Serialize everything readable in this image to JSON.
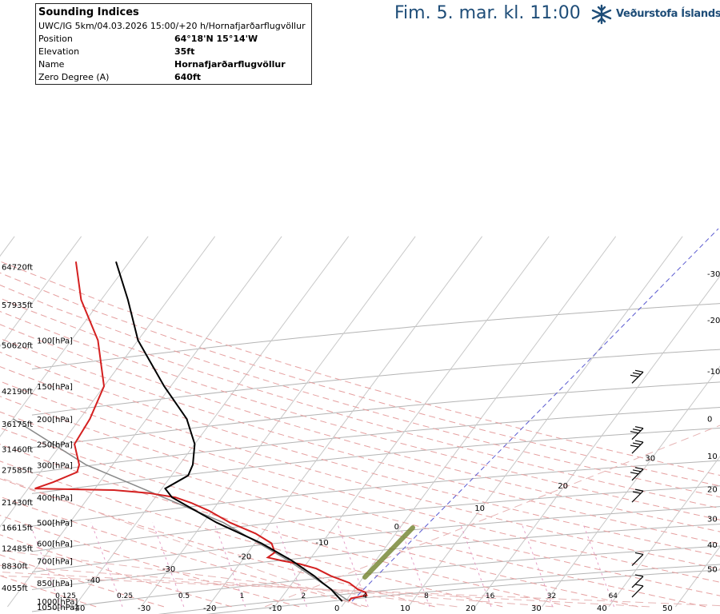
{
  "header": {
    "time_label": "Fim. 5. mar. kl. 11:00",
    "logo_text": "Veðurstofa Íslands",
    "brand_color": "#1e4d78"
  },
  "info": {
    "title": "Sounding Indices",
    "subtitle": "UWC/IG 5km/04.03.2026 15:00/+20 h/Hornafjarðarflugvöllur",
    "rows": [
      {
        "label": "Position",
        "value": "64°18'N 15°14'W"
      },
      {
        "label": "Elevation",
        "value": "35ft"
      },
      {
        "label": "Name",
        "value": "Hornafjarðarflugvöllur"
      },
      {
        "label": "Zero Degree (A)",
        "value": "640ft"
      }
    ]
  },
  "chart_data": {
    "type": "line",
    "pressure_levels": [
      {
        "p": 100,
        "label": "100[hPa]",
        "alt": "50620ft"
      },
      {
        "p": 150,
        "label": "150[hPa]",
        "alt": "42190ft"
      },
      {
        "p": 200,
        "label": "200[hPa]",
        "alt": "36175ft"
      },
      {
        "p": 250,
        "label": "250[hPa]",
        "alt": "31460ft"
      },
      {
        "p": 300,
        "label": "300[hPa]",
        "alt": "27585ft"
      },
      {
        "p": 400,
        "label": "400[hPa]",
        "alt": "21430ft"
      },
      {
        "p": 500,
        "label": "500[hPa]",
        "alt": "16615ft"
      },
      {
        "p": 600,
        "label": "600[hPa]",
        "alt": "12485ft"
      },
      {
        "p": 700,
        "label": "700[hPa]",
        "alt": "8830ft"
      },
      {
        "p": 850,
        "label": "850[hPa]",
        "alt": "4055ft"
      },
      {
        "p": 1000,
        "label": "1000[hPa]",
        "alt": ""
      },
      {
        "p": 1050,
        "label": "1050[hPa]",
        "alt": ""
      }
    ],
    "top_altitude_labels": [
      {
        "p": 50,
        "alt": "64720ft"
      },
      {
        "p": 70,
        "alt": "57935ft"
      }
    ],
    "right_axis_labels": [
      {
        "label": "-30",
        "p": 57
      },
      {
        "label": "-20",
        "p": 86
      },
      {
        "label": "-10",
        "p": 135
      },
      {
        "label": "0",
        "p": 205
      },
      {
        "label": "10",
        "p": 285
      },
      {
        "label": "20",
        "p": 382
      },
      {
        "label": "30",
        "p": 495
      },
      {
        "label": "40",
        "p": 623
      },
      {
        "label": "50",
        "p": 773
      }
    ],
    "bottom_labels": [
      "-40",
      "-30",
      "-20",
      "-10",
      "0",
      "10",
      "20",
      "30",
      "40",
      "50"
    ],
    "mixing_ratio_labels": [
      "0.125",
      "0.25",
      "0.5",
      "1",
      "2",
      "4",
      "8",
      "16",
      "32",
      "64"
    ],
    "isotherm_labels": [
      "-40",
      "-30",
      "-20",
      "-10",
      "0",
      "10",
      "20",
      "30"
    ],
    "temperature": [
      {
        "p": 1000,
        "t": 0.5
      },
      {
        "p": 975,
        "t": 0.5
      },
      {
        "p": 950,
        "t": 2.5
      },
      {
        "p": 925,
        "t": 2.0
      },
      {
        "p": 900,
        "t": 0.5
      },
      {
        "p": 850,
        "t": -1.5
      },
      {
        "p": 800,
        "t": -5.0
      },
      {
        "p": 750,
        "t": -8.0
      },
      {
        "p": 720,
        "t": -11.0
      },
      {
        "p": 700,
        "t": -14.0
      },
      {
        "p": 680,
        "t": -16.5
      },
      {
        "p": 650,
        "t": -16.0
      },
      {
        "p": 600,
        "t": -17.5
      },
      {
        "p": 550,
        "t": -21.0
      },
      {
        "p": 500,
        "t": -26.0
      },
      {
        "p": 450,
        "t": -30.5
      },
      {
        "p": 420,
        "t": -34.0
      },
      {
        "p": 400,
        "t": -37.0
      },
      {
        "p": 385,
        "t": -41.5
      },
      {
        "p": 375,
        "t": -47.0
      },
      {
        "p": 370,
        "t": -59.0
      },
      {
        "p": 350,
        "t": -57.0
      },
      {
        "p": 320,
        "t": -54.5
      },
      {
        "p": 300,
        "t": -55.0
      },
      {
        "p": 250,
        "t": -58.0
      },
      {
        "p": 200,
        "t": -58.5
      },
      {
        "p": 150,
        "t": -60.0
      },
      {
        "p": 100,
        "t": -66.0
      },
      {
        "p": 70,
        "t": -73.0
      },
      {
        "p": 50,
        "t": -78.0
      }
    ],
    "dewpoint": [
      {
        "p": 1000,
        "t": -0.5
      },
      {
        "p": 950,
        "t": -2.0
      },
      {
        "p": 900,
        "t": -3.5
      },
      {
        "p": 850,
        "t": -5.5
      },
      {
        "p": 800,
        "t": -7.5
      },
      {
        "p": 700,
        "t": -12.5
      },
      {
        "p": 600,
        "t": -19.0
      },
      {
        "p": 500,
        "t": -28.0
      },
      {
        "p": 400,
        "t": -37.5
      },
      {
        "p": 370,
        "t": -39.5
      },
      {
        "p": 330,
        "t": -37.5
      },
      {
        "p": 300,
        "t": -38.0
      },
      {
        "p": 250,
        "t": -40.0
      },
      {
        "p": 200,
        "t": -44.0
      },
      {
        "p": 150,
        "t": -51.0
      },
      {
        "p": 100,
        "t": -60.0
      },
      {
        "p": 70,
        "t": -66.0
      },
      {
        "p": 50,
        "t": -72.0
      }
    ],
    "parcel": [
      {
        "p": 1000,
        "t": 0.5
      },
      {
        "p": 700,
        "t": -13.0
      },
      {
        "p": 500,
        "t": -27.0
      },
      {
        "p": 300,
        "t": -54.0
      },
      {
        "p": 200,
        "t": -70.0
      }
    ],
    "wind_barbs": [
      {
        "p": 925,
        "speed": 15
      },
      {
        "p": 850,
        "speed": 15
      },
      {
        "p": 700,
        "speed": 10
      },
      {
        "p": 400,
        "speed": 25
      },
      {
        "p": 330,
        "speed": 30
      },
      {
        "p": 260,
        "speed": 50
      },
      {
        "p": 230,
        "speed": 55
      },
      {
        "p": 140,
        "speed": 60
      }
    ],
    "colors": {
      "temperature": "#d42020",
      "dewpoint": "#000000",
      "parcel": "#888888",
      "isobar": "#b4b4b4",
      "isotherm": "#c8c8c8",
      "dry_adiabat": "#e6a0a0",
      "moist_adiabat": "#e6b4b4",
      "mixing_ratio": "#e6a0c8"
    },
    "xlabel": "",
    "ylabel": ""
  }
}
